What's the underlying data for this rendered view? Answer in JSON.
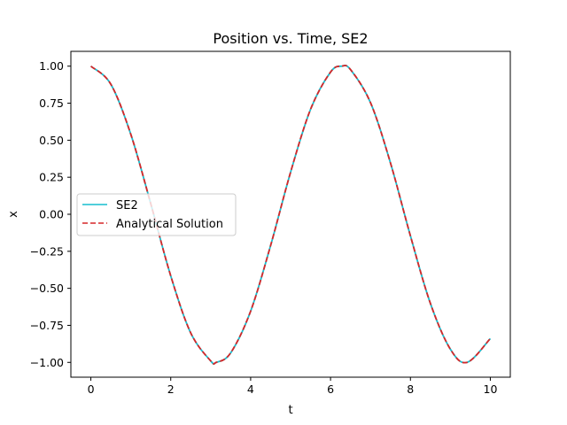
{
  "chart_data": {
    "type": "line",
    "title": "Position vs. Time, SE2",
    "xlabel": "t",
    "ylabel": "x",
    "xlim": [
      -0.5,
      10.5
    ],
    "ylim": [
      -1.1,
      1.1
    ],
    "xticks": [
      0,
      2,
      4,
      6,
      8,
      10
    ],
    "yticks": [
      -1.0,
      -0.75,
      -0.5,
      -0.25,
      0.0,
      0.25,
      0.5,
      0.75,
      1.0
    ],
    "xtick_labels": [
      "0",
      "2",
      "4",
      "6",
      "8",
      "10"
    ],
    "ytick_labels": [
      "−1.00",
      "−0.75",
      "−0.50",
      "−0.25",
      "0.00",
      "0.25",
      "0.50",
      "0.75",
      "1.00"
    ],
    "grid": false,
    "legend": "center-left",
    "series": [
      {
        "name": "SE2",
        "color": "#17becf",
        "style": "solid",
        "x": [
          0,
          0.5,
          1,
          1.5,
          2,
          2.5,
          3,
          3.14,
          3.5,
          4,
          4.5,
          5,
          5.5,
          6,
          6.28,
          6.5,
          7,
          7.5,
          8,
          8.5,
          9,
          9.42,
          10
        ],
        "y": [
          1.0,
          0.878,
          0.54,
          0.071,
          -0.416,
          -0.801,
          -0.99,
          -1.0,
          -0.936,
          -0.654,
          -0.211,
          0.284,
          0.709,
          0.96,
          1.0,
          0.977,
          0.754,
          0.347,
          -0.146,
          -0.602,
          -0.911,
          -1.0,
          -0.839
        ]
      },
      {
        "name": "Analytical Solution",
        "color": "#d62728",
        "style": "dashed",
        "x": [
          0,
          0.5,
          1,
          1.5,
          2,
          2.5,
          3,
          3.14,
          3.5,
          4,
          4.5,
          5,
          5.5,
          6,
          6.28,
          6.5,
          7,
          7.5,
          8,
          8.5,
          9,
          9.42,
          10
        ],
        "y": [
          1.0,
          0.878,
          0.54,
          0.071,
          -0.416,
          -0.801,
          -0.99,
          -1.0,
          -0.936,
          -0.654,
          -0.211,
          0.284,
          0.709,
          0.96,
          1.0,
          0.977,
          0.754,
          0.347,
          -0.146,
          -0.602,
          -0.911,
          -1.0,
          -0.839
        ]
      }
    ]
  }
}
